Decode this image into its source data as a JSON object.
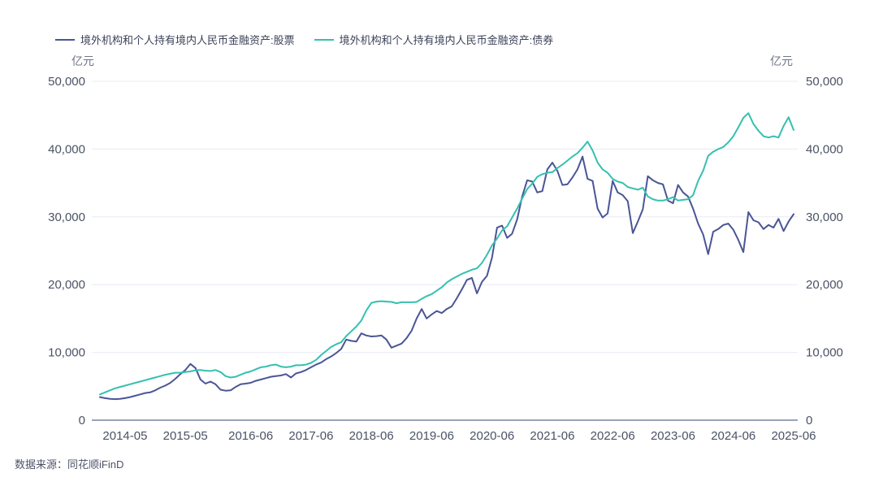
{
  "legend": [
    {
      "key": "stocks",
      "label": "境外机构和个人持有境内人民币金融资产:股票",
      "color": "#4A5596"
    },
    {
      "key": "bonds",
      "label": "境外机构和个人持有境内人民币金融资产:债券",
      "color": "#35C0B0"
    }
  ],
  "axes": {
    "unit_left": "亿元",
    "unit_right": "亿元"
  },
  "source": {
    "text": "数据来源：同花顺iFinD"
  },
  "chart_data": {
    "type": "line",
    "title": "",
    "xlabel": "",
    "ylabel": "亿元",
    "grid": true,
    "legend_position": "top-left",
    "ylim": [
      0,
      50000
    ],
    "yticks": [
      0,
      10000,
      20000,
      30000,
      40000,
      50000
    ],
    "xtick_labels": [
      "2014-05",
      "2015-05",
      "2016-06",
      "2017-06",
      "2018-06",
      "2019-06",
      "2020-06",
      "2021-06",
      "2022-06",
      "2023-06",
      "2024-06",
      "2025-06"
    ],
    "x": [
      "2013-12",
      "2014-01",
      "2014-02",
      "2014-03",
      "2014-04",
      "2014-05",
      "2014-06",
      "2014-07",
      "2014-08",
      "2014-09",
      "2014-10",
      "2014-11",
      "2014-12",
      "2015-01",
      "2015-02",
      "2015-03",
      "2015-04",
      "2015-05",
      "2015-06",
      "2015-07",
      "2015-08",
      "2015-09",
      "2015-10",
      "2015-11",
      "2015-12",
      "2016-01",
      "2016-02",
      "2016-03",
      "2016-04",
      "2016-05",
      "2016-06",
      "2016-07",
      "2016-08",
      "2016-09",
      "2016-10",
      "2016-11",
      "2016-12",
      "2017-01",
      "2017-02",
      "2017-03",
      "2017-04",
      "2017-05",
      "2017-06",
      "2017-07",
      "2017-08",
      "2017-09",
      "2017-10",
      "2017-11",
      "2017-12",
      "2018-01",
      "2018-02",
      "2018-03",
      "2018-04",
      "2018-05",
      "2018-06",
      "2018-07",
      "2018-08",
      "2018-09",
      "2018-10",
      "2018-11",
      "2018-12",
      "2019-01",
      "2019-02",
      "2019-03",
      "2019-04",
      "2019-05",
      "2019-06",
      "2019-07",
      "2019-08",
      "2019-09",
      "2019-10",
      "2019-11",
      "2019-12",
      "2020-01",
      "2020-02",
      "2020-03",
      "2020-04",
      "2020-05",
      "2020-06",
      "2020-07",
      "2020-08",
      "2020-09",
      "2020-10",
      "2020-11",
      "2020-12",
      "2021-01",
      "2021-02",
      "2021-03",
      "2021-04",
      "2021-05",
      "2021-06",
      "2021-07",
      "2021-08",
      "2021-09",
      "2021-10",
      "2021-11",
      "2021-12",
      "2022-01",
      "2022-02",
      "2022-03",
      "2022-04",
      "2022-05",
      "2022-06",
      "2022-07",
      "2022-08",
      "2022-09",
      "2022-10",
      "2022-11",
      "2022-12",
      "2023-01",
      "2023-02",
      "2023-03",
      "2023-04",
      "2023-05",
      "2023-06",
      "2023-07",
      "2023-08",
      "2023-09",
      "2023-10",
      "2023-11",
      "2023-12",
      "2024-01",
      "2024-02",
      "2024-03",
      "2024-04",
      "2024-05",
      "2024-06",
      "2024-07",
      "2024-08",
      "2024-09",
      "2024-10",
      "2024-11",
      "2024-12",
      "2025-01",
      "2025-02",
      "2025-03",
      "2025-04",
      "2025-05",
      "2025-06"
    ],
    "series": [
      {
        "name": "境外机构和个人持有境内人民币金融资产:股票",
        "color": "#4A5596",
        "values": [
          3400,
          3250,
          3150,
          3100,
          3150,
          3250,
          3400,
          3600,
          3800,
          4000,
          4100,
          4400,
          4800,
          5100,
          5500,
          6100,
          6800,
          7400,
          8300,
          7700,
          6000,
          5400,
          5700,
          5300,
          4500,
          4350,
          4400,
          4900,
          5300,
          5400,
          5520,
          5800,
          6000,
          6200,
          6400,
          6500,
          6600,
          6800,
          6300,
          6900,
          7100,
          7400,
          7800,
          8200,
          8500,
          9000,
          9400,
          9900,
          10500,
          11900,
          11700,
          11600,
          12800,
          12500,
          12350,
          12400,
          12500,
          11900,
          10700,
          11000,
          11300,
          12100,
          13200,
          15000,
          16400,
          15000,
          15600,
          16100,
          15800,
          16400,
          16800,
          18000,
          19300,
          20700,
          21000,
          18700,
          20400,
          21300,
          24000,
          28400,
          28700,
          26900,
          27500,
          29600,
          33000,
          35400,
          35200,
          33600,
          33800,
          37000,
          38000,
          36800,
          34700,
          34800,
          35800,
          37000,
          38900,
          35600,
          35300,
          31200,
          29900,
          30500,
          35300,
          33600,
          33200,
          32300,
          27600,
          29300,
          31100,
          36000,
          35400,
          35000,
          34800,
          32400,
          32000,
          34700,
          33600,
          33000,
          31200,
          29000,
          27400,
          24500,
          27800,
          28200,
          28800,
          29000,
          28100,
          26600,
          24800,
          30700,
          29500,
          29200,
          28200,
          28800,
          28400,
          29700,
          27900,
          29300,
          30400
        ]
      },
      {
        "name": "境外机构和个人持有境内人民币金融资产:债券",
        "color": "#35C0B0",
        "values": [
          3800,
          4100,
          4400,
          4700,
          4900,
          5100,
          5300,
          5500,
          5700,
          5900,
          6100,
          6300,
          6500,
          6700,
          6850,
          7000,
          7000,
          7100,
          7200,
          7350,
          7400,
          7300,
          7250,
          7400,
          7100,
          6500,
          6300,
          6400,
          6700,
          7000,
          7200,
          7500,
          7800,
          7900,
          8100,
          8200,
          7900,
          7800,
          7900,
          8100,
          8100,
          8200,
          8450,
          8900,
          9600,
          10200,
          10800,
          11200,
          11500,
          12400,
          13100,
          13800,
          14700,
          16200,
          17300,
          17500,
          17550,
          17500,
          17450,
          17250,
          17400,
          17400,
          17400,
          17450,
          17900,
          18300,
          18600,
          19100,
          19600,
          20300,
          20800,
          21200,
          21600,
          21900,
          22200,
          22400,
          23200,
          24400,
          25800,
          26800,
          28000,
          28600,
          29900,
          31200,
          32700,
          34100,
          34900,
          35900,
          36300,
          36500,
          36600,
          37200,
          37700,
          38300,
          38900,
          39400,
          40200,
          41100,
          39800,
          38000,
          37000,
          36500,
          35600,
          35200,
          35000,
          34400,
          34200,
          34000,
          34300,
          33000,
          32600,
          32400,
          32400,
          32600,
          32900,
          32400,
          32500,
          32600,
          33200,
          35300,
          36800,
          39000,
          39600,
          40000,
          40300,
          41000,
          41900,
          43200,
          44600,
          45300,
          43700,
          42700,
          41900,
          41700,
          41900,
          41700,
          43400,
          44700,
          42800
        ]
      }
    ]
  }
}
